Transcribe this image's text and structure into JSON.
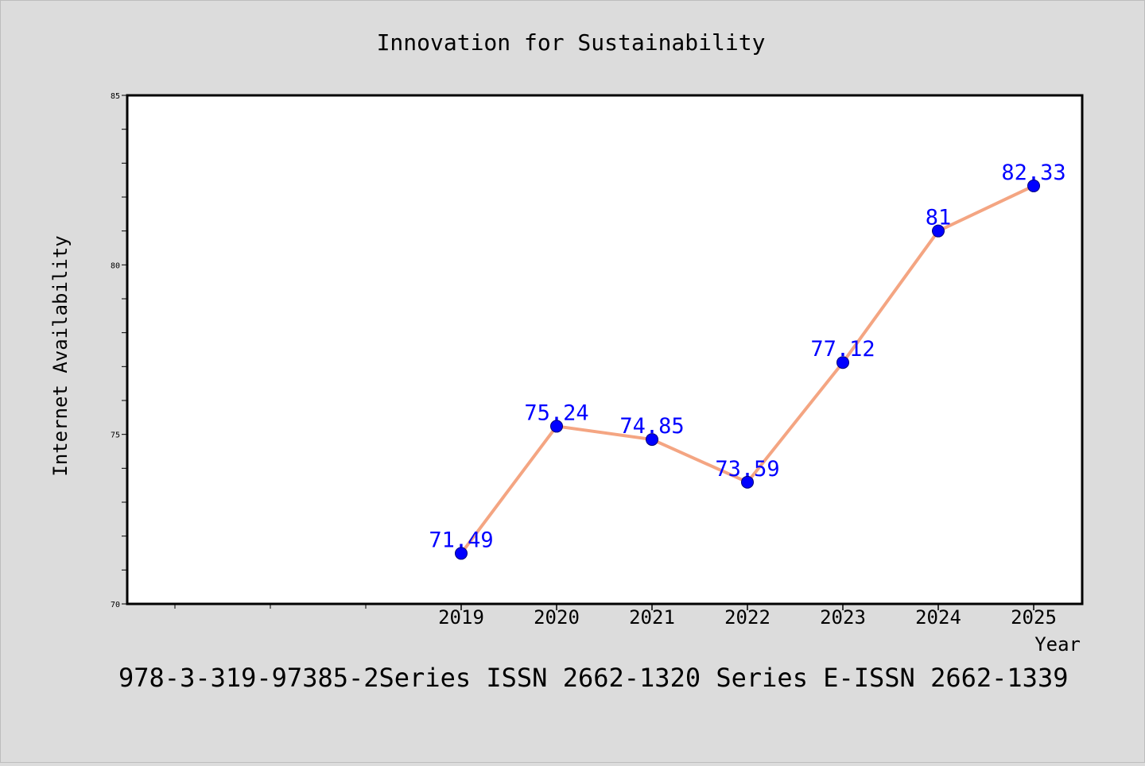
{
  "chart_data": {
    "type": "line",
    "title": "Innovation for Sustainability",
    "xlabel": "Year",
    "ylabel": "Internet Availability",
    "footer": "978-3-319-97385-2Series ISSN 2662-1320 Series E-ISSN 2662-1339",
    "x": [
      "2019",
      "2020",
      "2021",
      "2022",
      "2023",
      "2024",
      "2025"
    ],
    "series": [
      {
        "values": [
          71.49,
          75.24,
          74.85,
          73.59,
          77.12,
          81,
          82.33
        ],
        "labels": [
          "71.49",
          "75.24",
          "74.85",
          "73.59",
          "77.12",
          "81",
          "82.33"
        ]
      }
    ],
    "x_slots_before_first_year": 3,
    "ylim": [
      70,
      85
    ],
    "yticks": [
      "70",
      "75",
      "80",
      "85"
    ],
    "minor_ytick_step": 1,
    "grid": false,
    "legend": "none",
    "colors": {
      "background": "#dcdcdc",
      "plot_area": "#ffffff",
      "line": "#f4a582",
      "marker": "#0000ff",
      "data_label": "#0000ff",
      "text": "#000000"
    }
  }
}
